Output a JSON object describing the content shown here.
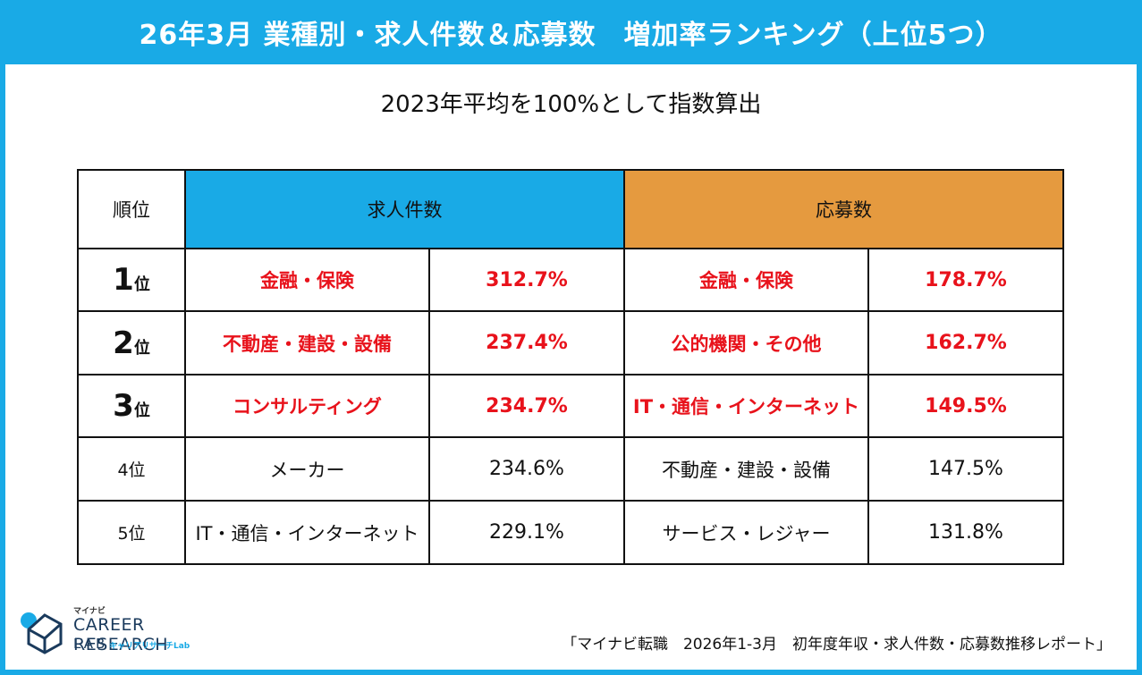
{
  "title": "26年3月 業種別・求人件数＆応募数　増加率ランキング（上位5つ）",
  "subtitle": "2023年平均を100%として指数算出",
  "table": {
    "header_rank": "順位",
    "header_jobs": "求人件数",
    "header_apps": "応募数",
    "rows": [
      {
        "rank_num": "1",
        "rank_suffix": "位",
        "jobs_industry": "金融・保険",
        "jobs_value": "312.7%",
        "apps_industry": "金融・保険",
        "apps_value": "178.7%"
      },
      {
        "rank_num": "2",
        "rank_suffix": "位",
        "jobs_industry": "不動産・建設・設備",
        "jobs_value": "237.4%",
        "apps_industry": "公的機関・その他",
        "apps_value": "162.7%"
      },
      {
        "rank_num": "3",
        "rank_suffix": "位",
        "jobs_industry": "コンサルティング",
        "jobs_value": "234.7%",
        "apps_industry": "IT・通信・インターネット",
        "apps_value": "149.5%"
      },
      {
        "rank_num": "4",
        "rank_suffix": "位",
        "jobs_industry": "メーカー",
        "jobs_value": "234.6%",
        "apps_industry": "不動産・建設・設備",
        "apps_value": "147.5%"
      },
      {
        "rank_num": "5",
        "rank_suffix": "位",
        "jobs_industry": "IT・通信・インターネット",
        "jobs_value": "229.1%",
        "apps_industry": "サービス・レジャー",
        "apps_value": "131.8%"
      }
    ]
  },
  "logo": {
    "top": "マイナビ",
    "main": "CAREER RESEARCH",
    "lab": "LAB",
    "sub": "キャリアリサーチLab"
  },
  "source": "「マイナビ転職　2026年1-3月　初年度年収・求人件数・応募数推移レポート」",
  "colors": {
    "accent": "#19aae6",
    "apps_header": "#e59a3f",
    "highlight": "#e8121b"
  }
}
